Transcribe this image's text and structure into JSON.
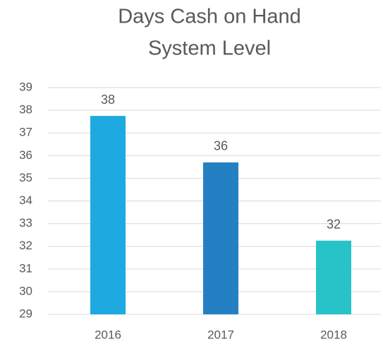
{
  "chart_data": {
    "type": "bar",
    "title": [
      "Days Cash on Hand",
      "System Level"
    ],
    "categories": [
      "2016",
      "2017",
      "2018"
    ],
    "values": [
      37.75,
      35.7,
      32.25
    ],
    "value_labels": [
      "38",
      "36",
      "32"
    ],
    "colors": [
      "#1ea9e1",
      "#2580c3",
      "#27c3c8"
    ],
    "ylim": [
      29,
      39
    ],
    "yticks": [
      29,
      30,
      31,
      32,
      33,
      34,
      35,
      36,
      37,
      38,
      39
    ],
    "grid": true
  }
}
